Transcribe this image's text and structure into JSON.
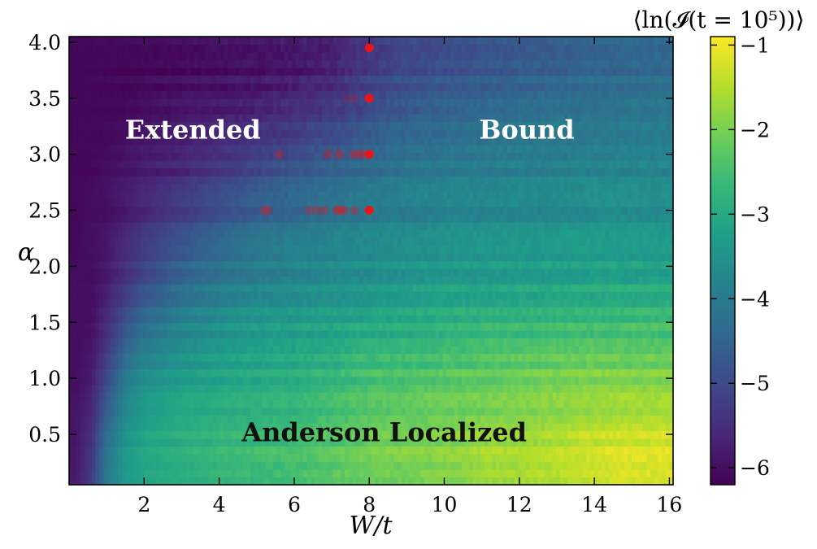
{
  "chart_data": {
    "type": "heatmap",
    "xlabel": "W/t",
    "ylabel": "α",
    "xlim": [
      0.0,
      16.1
    ],
    "ylim": [
      0.05,
      4.05
    ],
    "x_ticks": [
      2,
      4,
      6,
      8,
      10,
      12,
      14,
      16
    ],
    "y_ticks": [
      0.5,
      1.0,
      1.5,
      2.0,
      2.5,
      3.0,
      3.5,
      4.0
    ],
    "x_tick_labels": [
      "2",
      "4",
      "6",
      "8",
      "10",
      "12",
      "14",
      "16"
    ],
    "y_tick_labels": [
      "0.5",
      "1.0",
      "1.5",
      "2.0",
      "2.5",
      "3.0",
      "3.5",
      "4.0"
    ],
    "colorbar": {
      "title": "⟨ln(𝓘(t = 10⁵))⟩",
      "range": [
        -6.2,
        -0.9
      ],
      "ticks": [
        -1,
        -2,
        -3,
        -4,
        -5,
        -6
      ],
      "tick_labels": [
        "−1",
        "−2",
        "−3",
        "−4",
        "−5",
        "−6"
      ],
      "colormap": "viridis",
      "colors": [
        "#440154",
        "#482878",
        "#3e4989",
        "#31688e",
        "#26828e",
        "#1f9e89",
        "#35b779",
        "#6ece58",
        "#b5de2b",
        "#fde725"
      ]
    },
    "field_description": {
      "alpha_rows": [
        0.1,
        0.4,
        0.7,
        1.0,
        1.3,
        1.6,
        1.9,
        2.2,
        2.5,
        2.8,
        3.1,
        3.4,
        3.7,
        4.0
      ],
      "W_columns": [
        0.2,
        0.6,
        1.0,
        1.5,
        2,
        3,
        4,
        5,
        6,
        7,
        8,
        9,
        10,
        11,
        12,
        13,
        14,
        15,
        16
      ],
      "values_by_alpha": [
        [
          -5.8,
          -5.2,
          -4.0,
          -3.3,
          -3.0,
          -2.8,
          -2.6,
          -2.5,
          -2.4,
          -2.2,
          -2.0,
          -1.9,
          -1.8,
          -1.6,
          -1.5,
          -1.4,
          -1.2,
          -1.1,
          -1.1
        ],
        [
          -5.9,
          -5.4,
          -4.2,
          -3.4,
          -3.1,
          -2.9,
          -2.7,
          -2.6,
          -2.5,
          -2.3,
          -2.1,
          -2.0,
          -1.9,
          -1.7,
          -1.6,
          -1.5,
          -1.3,
          -1.2,
          -1.2
        ],
        [
          -5.9,
          -5.6,
          -4.6,
          -3.7,
          -3.3,
          -3.0,
          -2.9,
          -2.8,
          -2.7,
          -2.5,
          -2.3,
          -2.2,
          -2.1,
          -2.0,
          -1.9,
          -1.8,
          -1.7,
          -1.6,
          -1.6
        ],
        [
          -6.0,
          -5.8,
          -5.0,
          -4.0,
          -3.6,
          -3.3,
          -3.1,
          -3.0,
          -2.9,
          -2.7,
          -2.5,
          -2.4,
          -2.3,
          -2.2,
          -2.1,
          -2.0,
          -1.9,
          -1.9,
          -1.9
        ],
        [
          -6.0,
          -5.9,
          -5.4,
          -4.5,
          -4.0,
          -3.6,
          -3.4,
          -3.2,
          -3.1,
          -3.0,
          -2.8,
          -2.7,
          -2.6,
          -2.5,
          -2.4,
          -2.4,
          -2.3,
          -2.3,
          -2.3
        ],
        [
          -6.0,
          -6.0,
          -5.6,
          -5.0,
          -4.5,
          -4.0,
          -3.7,
          -3.5,
          -3.4,
          -3.3,
          -3.2,
          -3.1,
          -3.0,
          -2.9,
          -2.9,
          -2.8,
          -2.8,
          -2.7,
          -2.7
        ],
        [
          -6.0,
          -6.0,
          -5.8,
          -5.4,
          -5.0,
          -4.4,
          -4.1,
          -3.9,
          -3.7,
          -3.6,
          -3.5,
          -3.4,
          -3.3,
          -3.3,
          -3.2,
          -3.2,
          -3.1,
          -3.1,
          -3.1
        ],
        [
          -6.1,
          -6.0,
          -5.9,
          -5.6,
          -5.3,
          -4.9,
          -4.5,
          -4.2,
          -4.0,
          -3.9,
          -3.8,
          -3.7,
          -3.6,
          -3.5,
          -3.5,
          -3.4,
          -3.4,
          -3.4,
          -3.4
        ],
        [
          -6.1,
          -6.0,
          -6.0,
          -5.8,
          -5.6,
          -5.2,
          -4.9,
          -4.6,
          -4.4,
          -4.2,
          -4.0,
          -3.9,
          -3.8,
          -3.8,
          -3.7,
          -3.7,
          -3.6,
          -3.6,
          -3.6
        ],
        [
          -6.1,
          -6.1,
          -6.0,
          -5.9,
          -5.8,
          -5.6,
          -5.3,
          -5.0,
          -4.7,
          -4.5,
          -4.3,
          -4.1,
          -4.0,
          -4.0,
          -3.9,
          -3.9,
          -3.8,
          -3.8,
          -3.8
        ],
        [
          -6.1,
          -6.1,
          -6.1,
          -6.0,
          -5.9,
          -5.8,
          -5.6,
          -5.4,
          -5.2,
          -4.9,
          -4.6,
          -4.4,
          -4.3,
          -4.2,
          -4.1,
          -4.1,
          -4.0,
          -4.0,
          -4.0
        ],
        [
          -6.1,
          -6.1,
          -6.1,
          -6.1,
          -6.0,
          -5.9,
          -5.8,
          -5.7,
          -5.5,
          -5.3,
          -5.0,
          -4.7,
          -4.5,
          -4.4,
          -4.3,
          -4.2,
          -4.2,
          -4.1,
          -4.1
        ],
        [
          -6.1,
          -6.1,
          -6.1,
          -6.1,
          -6.1,
          -6.0,
          -6.0,
          -5.9,
          -5.8,
          -5.6,
          -5.2,
          -4.9,
          -4.8,
          -4.7,
          -4.6,
          -4.5,
          -4.4,
          -4.4,
          -4.3
        ],
        [
          -6.1,
          -6.1,
          -6.1,
          -6.1,
          -6.1,
          -6.1,
          -6.0,
          -6.0,
          -5.9,
          -5.8,
          -5.4,
          -5.1,
          -5.0,
          -4.9,
          -4.8,
          -4.7,
          -4.6,
          -4.5,
          -4.5
        ]
      ]
    },
    "annotations": [
      {
        "text": "Extended",
        "x": 3.3,
        "y": 3.22,
        "color": "#ffffff"
      },
      {
        "text": "Bound",
        "x": 12.2,
        "y": 3.22,
        "color": "#ffffff"
      },
      {
        "text": "Anderson Localized",
        "x": 8.4,
        "y": 0.52,
        "color": "#111111"
      }
    ],
    "series": [
      {
        "marker": "circle",
        "color": "#e8161b",
        "points": [
          {
            "x": 8.0,
            "y": 3.95,
            "opacity": 1.0
          },
          {
            "x": 8.0,
            "y": 3.5,
            "opacity": 1.0
          },
          {
            "x": 7.6,
            "y": 3.5,
            "opacity": 0.2
          },
          {
            "x": 7.4,
            "y": 3.5,
            "opacity": 0.15
          },
          {
            "x": 8.0,
            "y": 3.0,
            "opacity": 1.0
          },
          {
            "x": 7.8,
            "y": 3.0,
            "opacity": 0.5
          },
          {
            "x": 7.6,
            "y": 3.0,
            "opacity": 0.45
          },
          {
            "x": 7.2,
            "y": 3.0,
            "opacity": 0.4
          },
          {
            "x": 6.9,
            "y": 3.0,
            "opacity": 0.35
          },
          {
            "x": 5.6,
            "y": 3.0,
            "opacity": 0.35
          },
          {
            "x": 8.0,
            "y": 2.5,
            "opacity": 1.0
          },
          {
            "x": 7.6,
            "y": 2.5,
            "opacity": 0.35
          },
          {
            "x": 7.3,
            "y": 2.5,
            "opacity": 0.55
          },
          {
            "x": 7.15,
            "y": 2.5,
            "opacity": 0.55
          },
          {
            "x": 6.8,
            "y": 2.5,
            "opacity": 0.35
          },
          {
            "x": 6.6,
            "y": 2.5,
            "opacity": 0.3
          },
          {
            "x": 6.4,
            "y": 2.5,
            "opacity": 0.3
          },
          {
            "x": 5.3,
            "y": 2.5,
            "opacity": 0.3
          },
          {
            "x": 5.2,
            "y": 2.5,
            "opacity": 0.3
          }
        ]
      }
    ]
  }
}
